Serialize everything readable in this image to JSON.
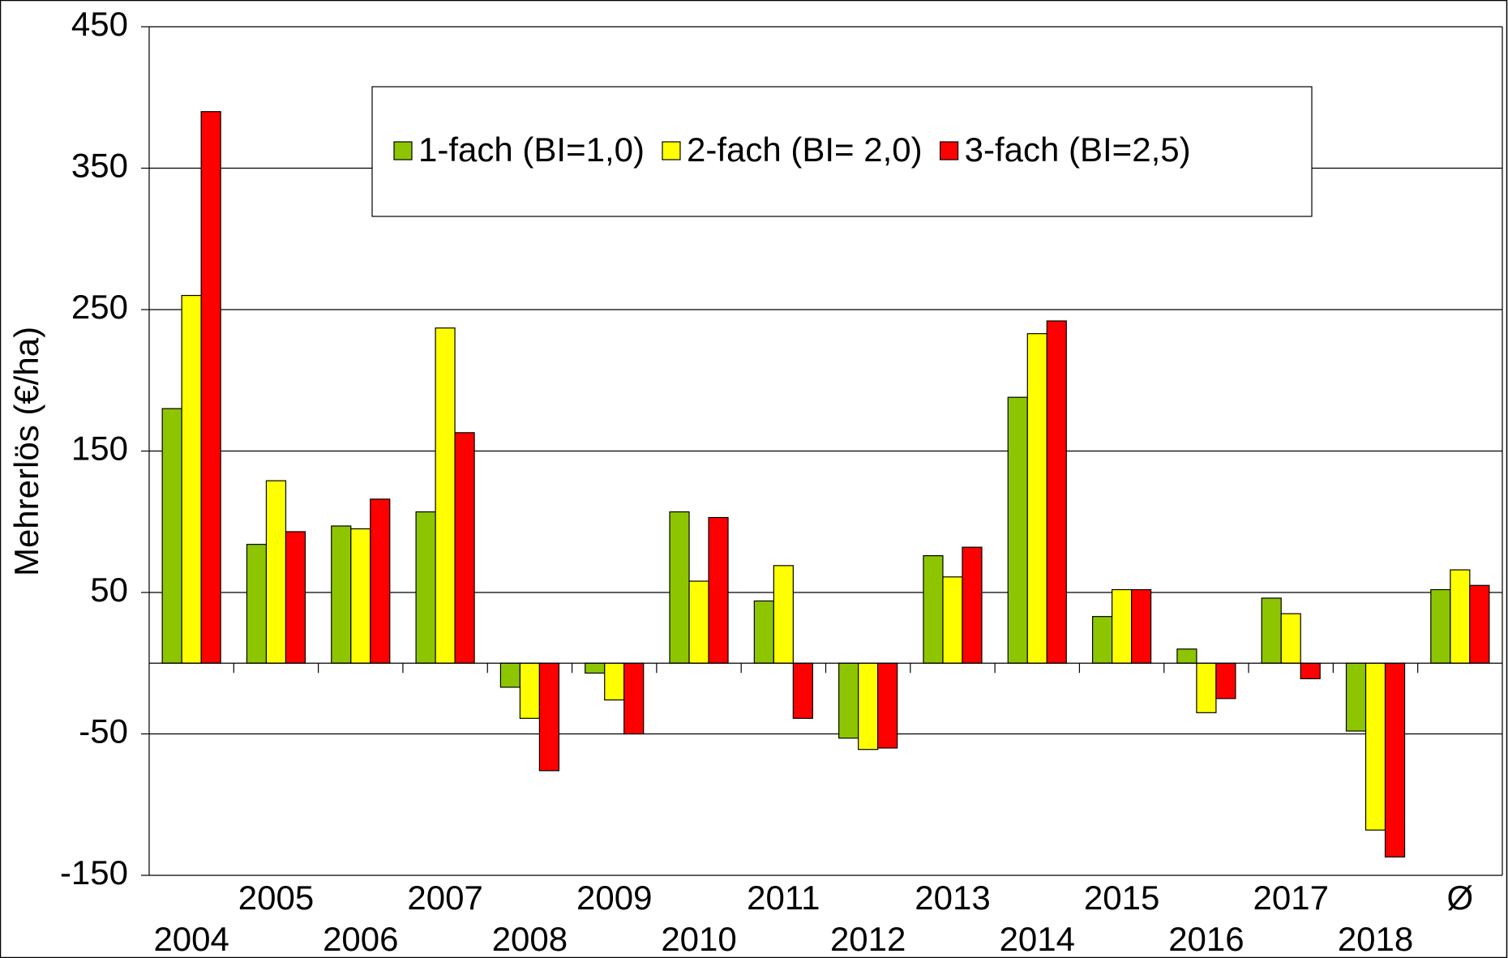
{
  "chart_data": {
    "type": "bar",
    "y_label": "Mehrerlös (€/ha)",
    "categories": [
      "2004",
      "2005",
      "2006",
      "2007",
      "2008",
      "2009",
      "2010",
      "2011",
      "2012",
      "2013",
      "2014",
      "2015",
      "2016",
      "2017",
      "2018",
      "Ø"
    ],
    "series": [
      {
        "name": "1-fach (BI=1,0)",
        "color": "#8dc600",
        "values": [
          180,
          84,
          97,
          107,
          -17,
          -7,
          107,
          44,
          -53,
          76,
          188,
          33,
          10,
          46,
          -48,
          52
        ]
      },
      {
        "name": "2-fach (BI= 2,0)",
        "color": "#ffff00",
        "values": [
          260,
          129,
          95,
          237,
          -39,
          -26,
          58,
          69,
          -61,
          61,
          233,
          52,
          -35,
          35,
          -118,
          66
        ]
      },
      {
        "name": "3-fach (BI=2,5)",
        "color": "#ff0000",
        "values": [
          390,
          93,
          116,
          163,
          -76,
          -50,
          103,
          -39,
          -60,
          82,
          242,
          52,
          -25,
          -11,
          -137,
          55
        ]
      }
    ],
    "ylim": [
      -150,
      450
    ],
    "yticks": [
      -150,
      -50,
      50,
      150,
      250,
      350,
      450
    ],
    "grid": true
  }
}
